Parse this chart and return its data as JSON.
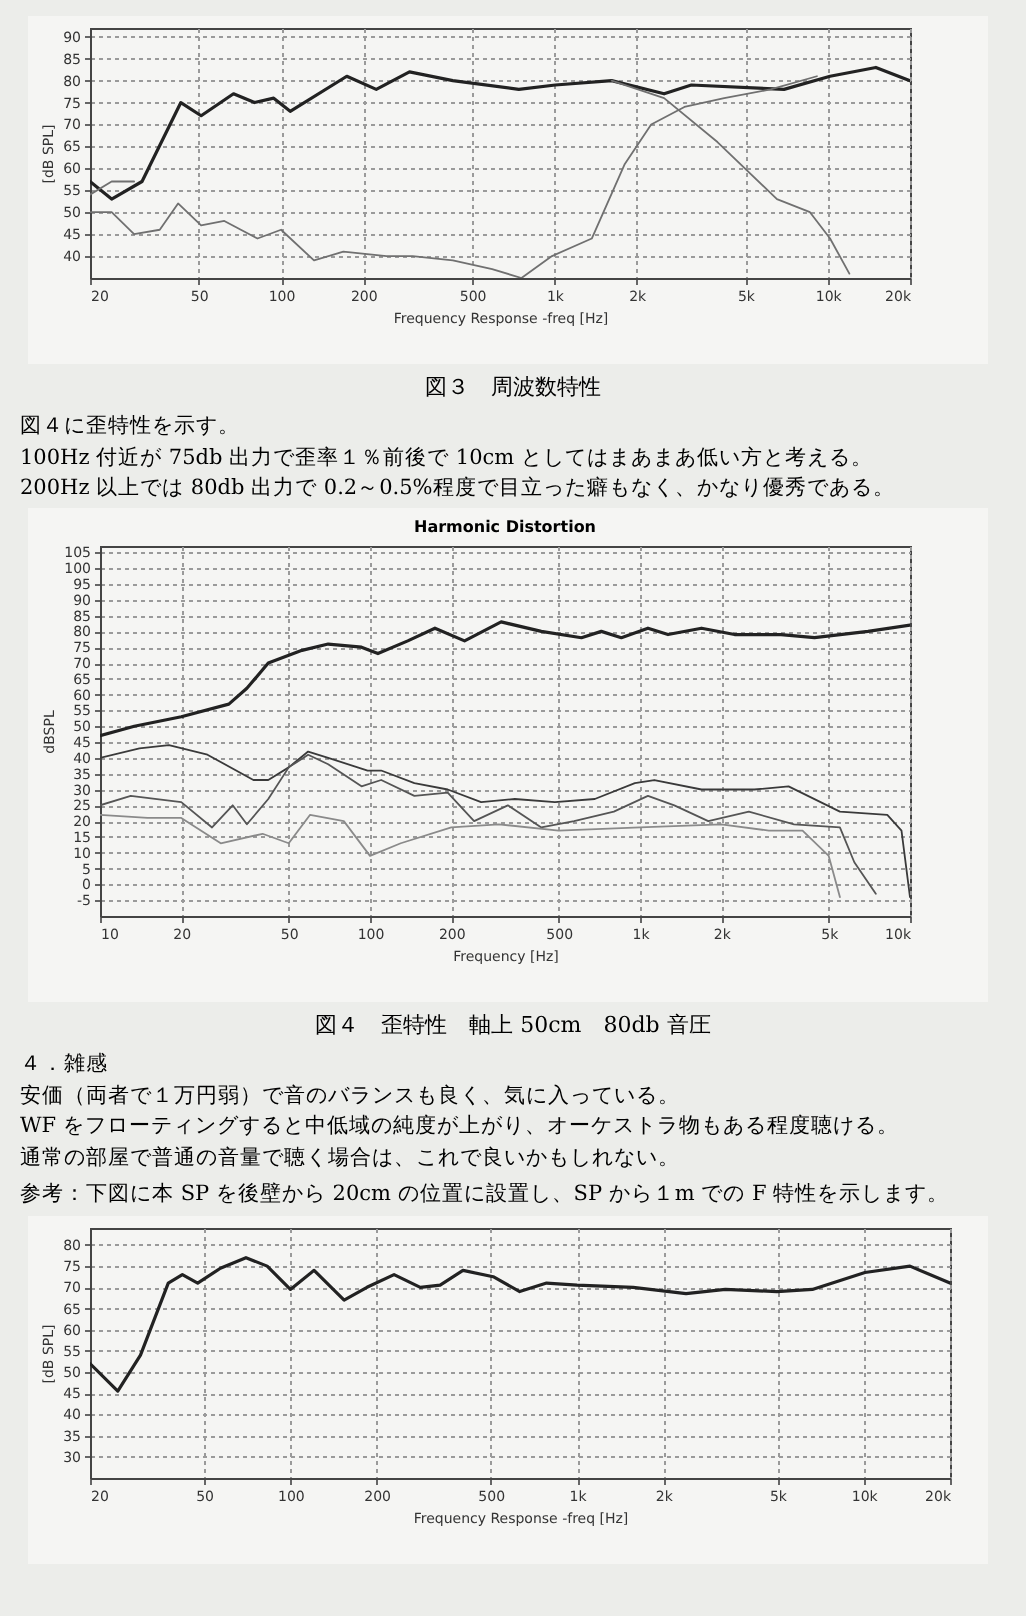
{
  "chart_data": [
    {
      "type": "line",
      "xlabel": "Frequency Response -freq [Hz]",
      "ylabel": "[dB SPL]",
      "log": "x",
      "grid": true,
      "xlim": [
        20,
        20000
      ],
      "ylim": [
        35,
        92
      ],
      "xticks": [
        20,
        50,
        100,
        200,
        500,
        {
          "value": 1000,
          "label": "1k"
        },
        {
          "value": 2000,
          "label": "2k"
        },
        {
          "value": 5000,
          "label": "5k"
        },
        {
          "value": 10000,
          "label": "10k"
        },
        {
          "value": 20000,
          "label": "20k"
        }
      ],
      "yticks": [
        40,
        45,
        50,
        55,
        60,
        65,
        70,
        75,
        80,
        85,
        90
      ],
      "series": [
        {
          "color": "#222222",
          "x": [
            20,
            24,
            31,
            43,
            51,
            67,
            80,
            94,
            108,
            174,
            223,
            295,
            425,
            741,
            1008,
            1620,
            2520,
            3170,
            6920,
            10200,
            15000,
            20000
          ],
          "values": [
            57,
            53,
            57,
            75,
            72,
            77,
            75,
            76,
            73,
            81,
            78,
            82,
            80,
            78,
            79,
            80,
            77,
            79,
            78,
            81,
            83,
            80
          ]
        },
        {
          "color": "#707070",
          "x": [
            20,
            24,
            29,
            36,
            42,
            51,
            62,
            82,
            100,
            132,
            169,
            243,
            303,
            425,
            592,
            758,
            980,
            1370,
            1810,
            2260,
            2990,
            4180,
            6180,
            9130
          ],
          "values": [
            50,
            50,
            45,
            46,
            52,
            47,
            48,
            44,
            46,
            39,
            41,
            40,
            40,
            39,
            37,
            35,
            40,
            44,
            61,
            70,
            74,
            76,
            78,
            81
          ]
        },
        {
          "color": "#707070",
          "x": [
            20,
            24,
            29,
            31,
            1620,
            2520,
            3950,
            6520,
            8610,
            10200,
            12000
          ],
          "values": [
            54,
            57,
            57,
            null,
            80,
            76,
            66,
            53,
            50,
            44,
            36
          ]
        }
      ],
      "annotations": [
        "図３　周波数特性",
        "図４に歪特性を示す。",
        "100Hz 付近が 75db 出力で歪率１％前後で 10cm としてはまあまあ低い方と考える。",
        "200Hz 以上では 80db 出力で 0.2～0.5%程度で目立った癖もなく、かなり優秀である。"
      ]
    },
    {
      "type": "line",
      "title": "Harmonic Distortion",
      "xlabel": "Frequency [Hz]",
      "ylabel": "dBSPL",
      "log": "x",
      "grid": true,
      "xlim": [
        10,
        10000
      ],
      "ylim": [
        -10,
        107
      ],
      "xticks": [
        10,
        20,
        50,
        100,
        200,
        500,
        {
          "value": 1000,
          "label": "1k"
        },
        {
          "value": 2000,
          "label": "2k"
        },
        {
          "value": 5000,
          "label": "5k"
        },
        {
          "value": 10000,
          "label": "10k"
        }
      ],
      "yticks": [
        -5,
        0,
        5,
        10,
        15,
        20,
        25,
        30,
        35,
        40,
        45,
        50,
        55,
        60,
        65,
        70,
        75,
        80,
        85,
        90,
        95,
        100,
        105
      ],
      "series": [
        {
          "color": "#222222",
          "x": [
            10,
            13.4,
            20,
            30,
            35,
            42,
            56,
            70,
            93,
            107,
            138,
            174,
            224,
            306,
            431,
            607,
            719,
            853,
            1070,
            1270,
            1690,
            2240,
            3330,
            4430,
            6990,
            10000
          ],
          "values": [
            47,
            50,
            53,
            57,
            62,
            70,
            74,
            76,
            75,
            73,
            77,
            81,
            77,
            83,
            80,
            78,
            80,
            78,
            81,
            79,
            81,
            79,
            79,
            78,
            80,
            82
          ]
        },
        {
          "color": "#3a3a3a",
          "x": [
            10,
            14,
            18,
            25,
            37,
            42,
            50,
            59,
            70,
            98,
            110,
            146,
            194,
            258,
            344,
            484,
            680,
            957,
            1130,
            1690,
            2650,
            3550,
            5500,
            8240,
            9300,
            10000
          ],
          "values": [
            40,
            43,
            44,
            41,
            33,
            33,
            37,
            42,
            40,
            36,
            36,
            32,
            30,
            26,
            27,
            26,
            27,
            32,
            33,
            30,
            30,
            31,
            23,
            22,
            17,
            -4
          ]
        },
        {
          "color": "#555555",
          "x": [
            10,
            13,
            20,
            26,
            31,
            35,
            42,
            50,
            59,
            70,
            93,
            110,
            146,
            194,
            243,
            324,
            431,
            570,
            800,
            1070,
            1340,
            1790,
            2530,
            3720,
            5500,
            6220,
            7470
          ],
          "values": [
            25,
            28,
            26,
            18,
            25,
            19,
            27,
            37,
            41,
            38,
            31,
            33,
            28,
            29,
            20,
            25,
            18,
            20,
            23,
            28,
            25,
            20,
            23,
            19,
            18,
            7,
            -3
          ]
        },
        {
          "color": "#8a8a8a",
          "x": [
            10,
            15,
            20,
            28,
            40,
            50,
            60,
            80,
            100,
            130,
            200,
            300,
            500,
            1000,
            2000,
            3000,
            4000,
            5000,
            5500
          ],
          "values": [
            22,
            21,
            21,
            13,
            16,
            13,
            22,
            20,
            9,
            13,
            18,
            19,
            17,
            18,
            19,
            17,
            17,
            9,
            -4
          ]
        }
      ],
      "annotations": [
        "図４　歪特性　軸上 50cm　80db 音圧",
        "４．雑感",
        "安価（両者で１万円弱）で音のバランスも良く、気に入っている。",
        "WF をフローティングすると中低域の純度が上がり、オーケストラ物もある程度聴ける。",
        "通常の部屋で普通の音量で聴く場合は、これで良いかもしれない。"
      ]
    },
    {
      "type": "line",
      "subtitle": "参考：下図に本 SP を後壁から 20cm の位置に設置し、SP から１m での F 特性を示します。",
      "xlabel": "Frequency Response -freq [Hz]",
      "ylabel": "[dB SPL]",
      "log": "x",
      "grid": true,
      "xlim": [
        20,
        20000
      ],
      "ylim": [
        25,
        84
      ],
      "xticks": [
        20,
        50,
        100,
        200,
        500,
        {
          "value": 1000,
          "label": "1k"
        },
        {
          "value": 2000,
          "label": "2k"
        },
        {
          "value": 5000,
          "label": "5k"
        },
        {
          "value": 10000,
          "label": "10k"
        },
        {
          "value": 20000,
          "label": "20k"
        }
      ],
      "yticks": [
        30,
        35,
        40,
        45,
        50,
        55,
        60,
        65,
        70,
        75,
        80
      ],
      "series": [
        {
          "color": "#222222",
          "x": [
            20,
            25,
            30,
            37.5,
            42,
            47.5,
            57,
            70,
            83,
            100,
            121,
            154,
            185,
            230,
            284,
            333,
            400,
            510,
            631,
            783,
            1000,
            1570,
            2400,
            3290,
            4980,
            6620,
            10100,
            14500,
            20000
          ],
          "values": [
            52,
            45.5,
            54,
            71,
            73,
            71,
            74.5,
            77,
            75,
            69.5,
            74,
            67,
            70,
            73,
            70,
            70.5,
            74,
            72.5,
            69,
            71,
            70.5,
            70,
            68.5,
            69.5,
            69,
            69.5,
            73.5,
            75,
            71
          ]
        }
      ]
    }
  ]
}
